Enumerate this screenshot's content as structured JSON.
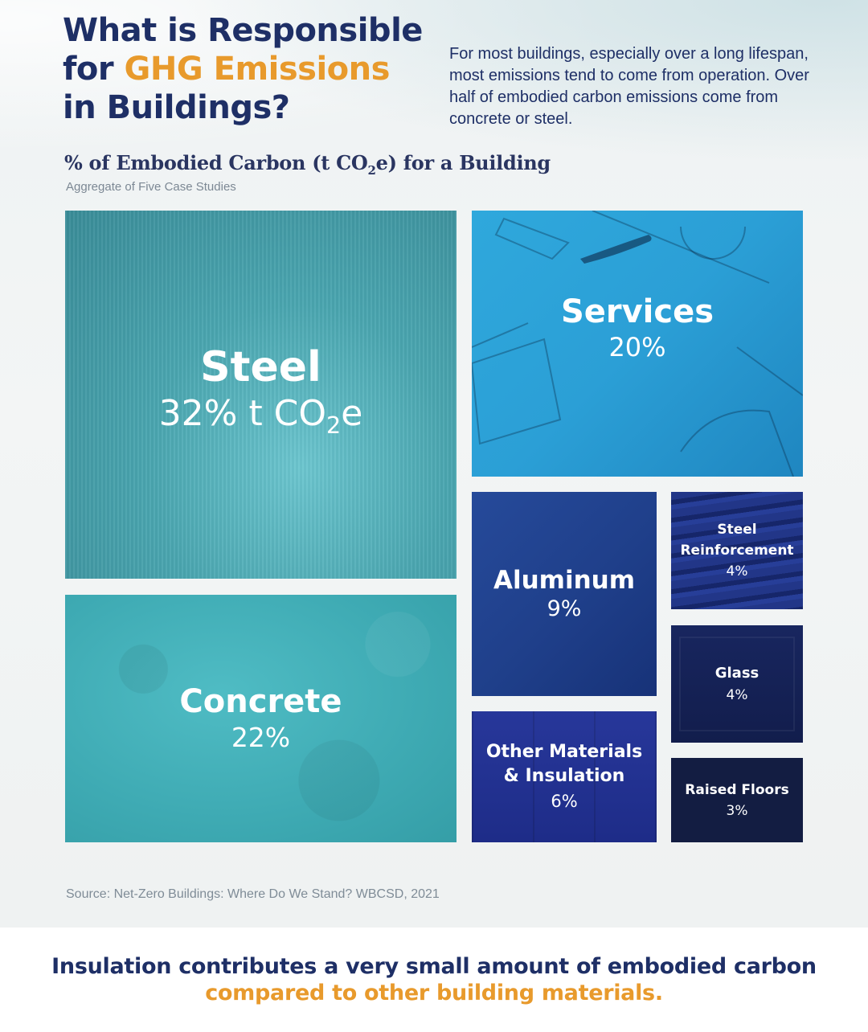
{
  "header": {
    "title_line1": "What is Responsible",
    "title_for": "for ",
    "title_highlight": "GHG Emissions",
    "title_line3": "in Buildings?",
    "intro": "For most buildings, especially over a long lifespan, most emissions tend to come from operation. Over half of embodied carbon emissions come from concrete or steel."
  },
  "chart_data": {
    "type": "treemap",
    "title_pre": "% of Embodied Carbon (t CO",
    "title_sub": "2",
    "title_post": "e) for a Building",
    "subtitle": "Aggregate of Five Case Studies",
    "unit": "%",
    "items": [
      {
        "label": "Steel",
        "value": 32,
        "value_text": "32% t CO",
        "value_sub": "2",
        "value_suffix": "e"
      },
      {
        "label": "Concrete",
        "value": 22,
        "value_text": "22%"
      },
      {
        "label": "Services",
        "value": 20,
        "value_text": "20%"
      },
      {
        "label": "Aluminum",
        "value": 9,
        "value_text": "9%"
      },
      {
        "label": "Other Materials & Insulation",
        "value": 6,
        "value_text": "6%"
      },
      {
        "label": "Steel Reinforcement",
        "value": 4,
        "value_text": "4%"
      },
      {
        "label": "Glass",
        "value": 4,
        "value_text": "4%"
      },
      {
        "label": "Raised Floors",
        "value": 3,
        "value_text": "3%"
      }
    ]
  },
  "source": "Source: Net-Zero Buildings: Where Do We Stand? WBCSD, 2021",
  "footer": {
    "text_main": "Insulation contributes a very small amount of embodied carbon ",
    "text_highlight": "compared to other building materials."
  },
  "colors": {
    "title": "#1e2f66",
    "highlight": "#e89a2c"
  }
}
